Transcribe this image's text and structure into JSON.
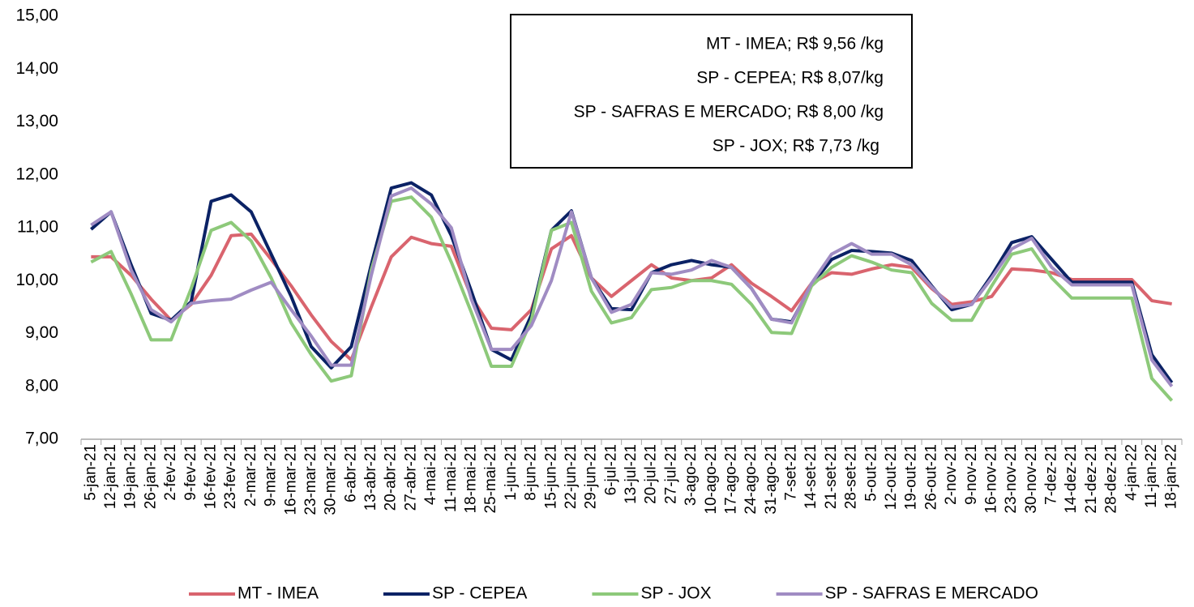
{
  "chart_data": {
    "type": "line",
    "categories": [
      "5-jan-21",
      "12-jan-21",
      "19-jan-21",
      "26-jan-21",
      "2-fev-21",
      "9-fev-21",
      "16-fev-21",
      "23-fev-21",
      "2-mar-21",
      "9-mar-21",
      "16-mar-21",
      "23-mar-21",
      "30-mar-21",
      "6-abr-21",
      "13-abr-21",
      "20-abr-21",
      "27-abr-21",
      "4-mai-21",
      "11-mai-21",
      "18-mai-21",
      "25-mai-21",
      "1-jun-21",
      "8-jun-21",
      "15-jun-21",
      "22-jun-21",
      "29-jun-21",
      "6-jul-21",
      "13-jul-21",
      "20-jul-21",
      "27-jul-21",
      "3-ago-21",
      "10-ago-21",
      "17-ago-21",
      "24-ago-21",
      "31-ago-21",
      "7-set-21",
      "14-set-21",
      "21-set-21",
      "28-set-21",
      "5-out-21",
      "12-out-21",
      "19-out-21",
      "26-out-21",
      "2-nov-21",
      "9-nov-21",
      "16-nov-21",
      "23-nov-21",
      "30-nov-21",
      "7-dez-21",
      "14-dez-21",
      "21-dez-21",
      "28-dez-21",
      "4-jan-22",
      "11-jan-22",
      "18-jan-22"
    ],
    "series": [
      {
        "name": "MT - IMEA",
        "color": "#d9646e",
        "values": [
          10.45,
          10.45,
          10.1,
          9.65,
          9.25,
          9.55,
          10.1,
          10.85,
          10.88,
          10.4,
          9.9,
          9.35,
          8.85,
          8.5,
          9.5,
          10.45,
          10.82,
          10.7,
          10.65,
          9.7,
          9.1,
          9.07,
          9.45,
          10.6,
          10.85,
          10.05,
          9.7,
          10.0,
          10.3,
          10.05,
          10.0,
          10.05,
          10.3,
          9.95,
          9.7,
          9.43,
          9.95,
          10.15,
          10.12,
          10.22,
          10.3,
          10.25,
          9.85,
          9.55,
          9.6,
          9.7,
          10.22,
          10.2,
          10.15,
          10.02,
          10.02,
          10.02,
          10.02,
          9.62,
          9.56
        ]
      },
      {
        "name": "SP - CEPEA",
        "color": "#0b2265",
        "values": [
          10.97,
          11.3,
          10.3,
          9.38,
          9.25,
          9.6,
          11.5,
          11.62,
          11.3,
          10.5,
          9.7,
          8.75,
          8.35,
          8.75,
          10.3,
          11.75,
          11.85,
          11.62,
          10.85,
          9.8,
          8.7,
          8.5,
          9.35,
          10.95,
          11.32,
          10.05,
          9.47,
          9.45,
          10.15,
          10.3,
          10.38,
          10.3,
          10.25,
          9.85,
          9.27,
          9.22,
          9.92,
          10.4,
          10.57,
          10.55,
          10.52,
          10.38,
          9.9,
          9.45,
          9.55,
          10.1,
          10.72,
          10.83,
          10.4,
          9.97,
          9.97,
          9.97,
          9.97,
          8.6,
          8.07
        ]
      },
      {
        "name": "SP - JOX",
        "color": "#8dc97a",
        "values": [
          10.35,
          10.55,
          9.75,
          8.88,
          8.88,
          9.85,
          10.95,
          11.1,
          10.75,
          10.05,
          9.2,
          8.6,
          8.1,
          8.2,
          10.2,
          11.5,
          11.58,
          11.2,
          10.35,
          9.4,
          8.38,
          8.38,
          9.25,
          10.95,
          11.1,
          9.8,
          9.2,
          9.3,
          9.83,
          9.87,
          10.0,
          10.0,
          9.93,
          9.55,
          9.02,
          9.0,
          9.9,
          10.25,
          10.47,
          10.35,
          10.2,
          10.15,
          9.57,
          9.25,
          9.25,
          9.9,
          10.5,
          10.6,
          10.05,
          9.67,
          9.67,
          9.67,
          9.67,
          8.15,
          7.73
        ]
      },
      {
        "name": "SP - SAFRAS E MERCADO",
        "color": "#a08cc3",
        "values": [
          11.05,
          11.3,
          10.2,
          9.45,
          9.22,
          9.57,
          9.62,
          9.65,
          9.82,
          9.97,
          9.45,
          8.95,
          8.4,
          8.4,
          10.1,
          11.6,
          11.75,
          11.45,
          11.0,
          9.65,
          8.7,
          8.7,
          9.15,
          10.0,
          11.3,
          10.05,
          9.4,
          9.55,
          10.15,
          10.12,
          10.2,
          10.38,
          10.25,
          9.85,
          9.27,
          9.2,
          9.95,
          10.5,
          10.7,
          10.5,
          10.5,
          10.3,
          9.88,
          9.5,
          9.55,
          10.05,
          10.6,
          10.8,
          10.25,
          9.92,
          9.92,
          9.92,
          9.92,
          8.5,
          8.0
        ]
      }
    ],
    "ylim": [
      7,
      15
    ],
    "yticks": [
      {
        "value": 7,
        "label": "7,00"
      },
      {
        "value": 8,
        "label": "8,00"
      },
      {
        "value": 9,
        "label": "9,00"
      },
      {
        "value": 10,
        "label": "10,00"
      },
      {
        "value": 11,
        "label": "11,00"
      },
      {
        "value": 12,
        "label": "12,00"
      },
      {
        "value": 13,
        "label": "13,00"
      },
      {
        "value": 14,
        "label": "14,00"
      },
      {
        "value": 15,
        "label": "15,00"
      }
    ],
    "annotations": [
      "MT - IMEA; R$ 9,56 /kg",
      "SP - CEPEA; R$ 8,07/kg",
      "SP - SAFRAS E MERCADO; R$ 8,00 /kg",
      "SP - JOX; R$ 7,73 /kg"
    ],
    "legend": "bottom"
  }
}
